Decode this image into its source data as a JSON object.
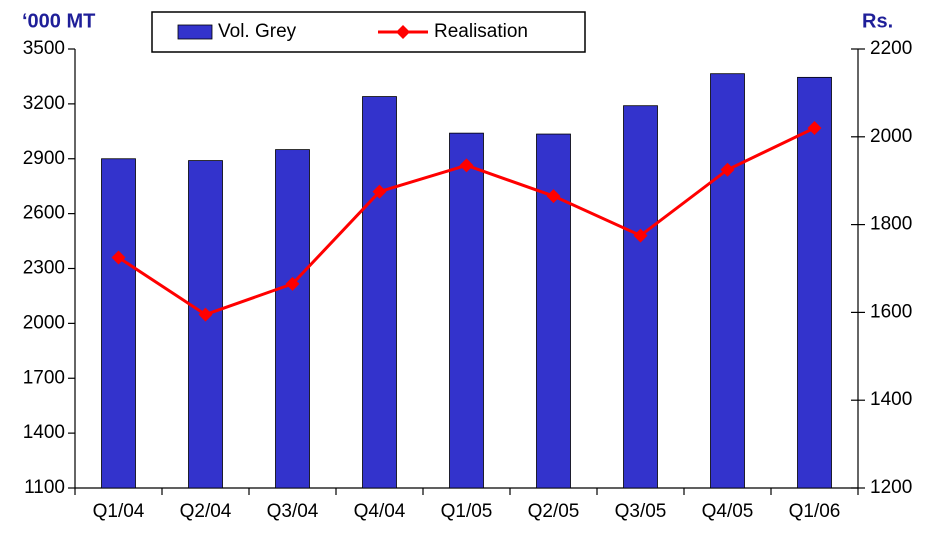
{
  "chart_data": {
    "type": "bar_line",
    "y_label": "‘000 MT",
    "y2_label": "Rs.",
    "categories": [
      "Q1/04",
      "Q2/04",
      "Q3/04",
      "Q4/04",
      "Q1/05",
      "Q2/05",
      "Q3/05",
      "Q4/05",
      "Q1/06"
    ],
    "series": [
      {
        "name": "Vol. Grey",
        "color": "#3333cc",
        "type": "bar",
        "values": [
          2900,
          2890,
          2950,
          3240,
          3040,
          3035,
          3190,
          3365,
          3345
        ]
      },
      {
        "name": "Realisation",
        "color": "#ff0000",
        "type": "line",
        "axis": "y2",
        "values": [
          1725,
          1595,
          1665,
          1875,
          1935,
          1865,
          1775,
          1925,
          2020
        ]
      }
    ],
    "ylim": [
      1100,
      3500
    ],
    "yticks": [
      1100,
      1400,
      1700,
      2000,
      2300,
      2600,
      2900,
      3200,
      3500
    ],
    "y2lim": [
      1200,
      2200
    ],
    "y2ticks": [
      1200,
      1400,
      1600,
      1800,
      2000,
      2200
    ],
    "grid": false,
    "legend": "top"
  }
}
